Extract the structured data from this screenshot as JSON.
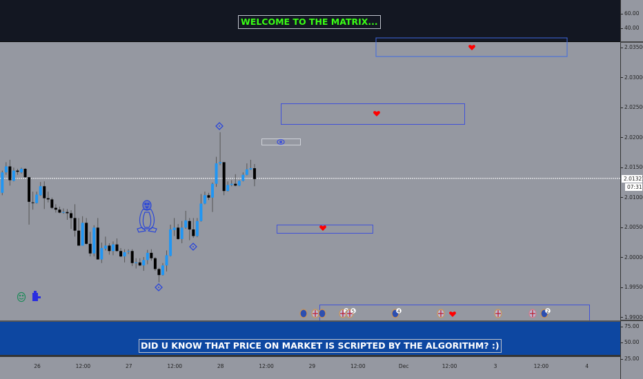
{
  "top_pane": {
    "banner": "WELCOME TO THE MATRIX...",
    "scale": [
      "60.00",
      "40.00"
    ],
    "banner_color": "#39ff14",
    "background": "#131722"
  },
  "bottom_pane": {
    "banner": "DID U KNOW THAT PRICE ON MARKET IS SCRIPTED BY THE ALGORITHM? :)",
    "scale": [
      "75.00",
      "50.00",
      "25.00"
    ],
    "background": "#0d47a1"
  },
  "price_axis": {
    "ticks": [
      "2.03500",
      "2.03000",
      "2.02500",
      "2.02000",
      "2.01500",
      "2.01000",
      "2.00500",
      "2.00000",
      "1.99500",
      "1.99000"
    ],
    "current_price": "2.01321",
    "countdown": "07:31"
  },
  "time_axis": {
    "ticks": [
      "26",
      "12:00",
      "27",
      "12:00",
      "28",
      "12:00",
      "29",
      "12:00",
      "Dec",
      "12:00",
      "3",
      "12:00",
      "4"
    ]
  },
  "colors": {
    "up": "#2196f3",
    "down": "#000000",
    "wick": "#555555",
    "box": "#3f51d8",
    "heart": "#ff0000",
    "background": "#9598a1"
  },
  "chart_data": {
    "type": "candlestick",
    "ylim": [
      1.99,
      2.035
    ],
    "current_price": 2.01321,
    "fields": [
      "open",
      "high",
      "low",
      "close"
    ],
    "candles": [
      [
        2.0108,
        2.0145,
        2.0104,
        2.0142
      ],
      [
        2.0142,
        2.0159,
        2.0138,
        2.0152
      ],
      [
        2.0152,
        2.0163,
        2.012,
        2.0129
      ],
      [
        2.0128,
        2.015,
        2.0127,
        2.0145
      ],
      [
        2.0145,
        2.0148,
        2.0138,
        2.0143
      ],
      [
        2.0142,
        2.015,
        2.014,
        2.0148
      ],
      [
        2.0148,
        2.0149,
        2.0133,
        2.0134
      ],
      [
        2.0134,
        2.0134,
        2.0055,
        2.0093
      ],
      [
        2.0092,
        2.011,
        2.008,
        2.0091
      ],
      [
        2.0091,
        2.011,
        2.009,
        2.0105
      ],
      [
        2.0104,
        2.0126,
        2.0103,
        2.0119
      ],
      [
        2.0119,
        2.0127,
        2.0081,
        2.0099
      ],
      [
        2.0099,
        2.011,
        2.0092,
        2.0097
      ],
      [
        2.0097,
        2.01,
        2.0081,
        2.0083
      ],
      [
        2.0083,
        2.0089,
        2.0075,
        2.008
      ],
      [
        2.008,
        2.0085,
        2.0074,
        2.0075
      ],
      [
        2.0075,
        2.0082,
        2.0073,
        2.0076
      ],
      [
        2.0076,
        2.0081,
        2.0063,
        2.0074
      ],
      [
        2.0074,
        2.0079,
        2.0048,
        2.0066
      ],
      [
        2.0066,
        2.0089,
        2.0035,
        2.0045
      ],
      [
        2.0045,
        2.0066,
        2.002,
        2.002
      ],
      [
        2.002,
        2.0069,
        2.002,
        2.0058
      ],
      [
        2.0058,
        2.0066,
        2.0022,
        2.0023
      ],
      [
        2.0023,
        2.0043,
        2.0002,
        2.0007
      ],
      [
        2.0007,
        2.0054,
        2.0002,
        2.005
      ],
      [
        2.005,
        2.0066,
        1.9997,
        1.9997
      ],
      [
        1.9997,
        2.0025,
        1.9991,
        2.0016
      ],
      [
        2.0015,
        2.0035,
        2.0012,
        2.002
      ],
      [
        2.002,
        2.0024,
        2.0005,
        2.0011
      ],
      [
        2.0011,
        2.0027,
        2.0004,
        2.0022
      ],
      [
        2.0022,
        2.0032,
        2.001,
        2.0011
      ],
      [
        2.0011,
        2.0016,
        2.0001,
        2.0002
      ],
      [
        2.0002,
        2.0014,
        1.9992,
        2.0009
      ],
      [
        2.001,
        2.0014,
        2.0006,
        2.0011
      ],
      [
        2.0011,
        2.0014,
        1.9986,
        1.9991
      ],
      [
        1.9991,
        1.9999,
        1.9982,
        1.9992
      ],
      [
        1.9992,
        1.9999,
        1.9986,
        1.9987
      ],
      [
        1.9987,
        2.0001,
        1.9978,
        1.9996
      ],
      [
        1.9996,
        2.0013,
        1.9989,
        2.0008
      ],
      [
        2.0008,
        2.0014,
        1.9995,
        1.9999
      ],
      [
        1.9999,
        2.0001,
        1.9978,
        1.9981
      ],
      [
        1.9981,
        1.9983,
        1.9959,
        1.9971
      ],
      [
        1.9971,
        1.9991,
        1.997,
        1.9987
      ],
      [
        1.9987,
        2.0012,
        1.9977,
        2.0004
      ],
      [
        2.0003,
        2.0055,
        2.0002,
        2.0047
      ],
      [
        2.0046,
        2.0066,
        2.0036,
        2.005
      ],
      [
        2.005,
        2.0056,
        2.003,
        2.0031
      ],
      [
        2.0031,
        2.0061,
        2.0024,
        2.005
      ],
      [
        2.005,
        2.0078,
        2.0048,
        2.0062
      ],
      [
        2.0061,
        2.0066,
        2.0029,
        2.0047
      ],
      [
        2.0047,
        2.0066,
        2.0033,
        2.0036
      ],
      [
        2.0036,
        2.0066,
        2.0034,
        2.0061
      ],
      [
        2.0061,
        2.0106,
        2.006,
        2.009
      ],
      [
        2.009,
        2.011,
        2.0089,
        2.0104
      ],
      [
        2.0104,
        2.0108,
        2.0096,
        2.01
      ],
      [
        2.01,
        2.0125,
        2.0076,
        2.0123
      ],
      [
        2.0123,
        2.0168,
        2.0118,
        2.0157
      ],
      [
        2.0157,
        2.0209,
        2.0154,
        2.0159
      ],
      [
        2.0159,
        2.0159,
        2.0104,
        2.0111
      ],
      [
        2.0111,
        2.0127,
        2.011,
        2.0121
      ],
      [
        2.0121,
        2.0129,
        2.0119,
        2.0123
      ],
      [
        2.0123,
        2.0139,
        2.0119,
        2.012
      ],
      [
        2.012,
        2.0129,
        2.0119,
        2.0128
      ],
      [
        2.0128,
        2.0142,
        2.0127,
        2.0138
      ],
      [
        2.0138,
        2.0157,
        2.0137,
        2.0147
      ],
      [
        2.0147,
        2.0163,
        2.0146,
        2.0149
      ],
      [
        2.0149,
        2.0156,
        2.0119,
        2.0131
      ]
    ]
  },
  "drawings": {
    "icons": [
      "heart-icon",
      "eye-icon",
      "penguin-icon",
      "diamond-target-icon",
      "smiley-icon",
      "puzzle-icon",
      "flag-event-icon"
    ],
    "event_badges": [
      "2",
      "5",
      "4",
      "2"
    ]
  }
}
